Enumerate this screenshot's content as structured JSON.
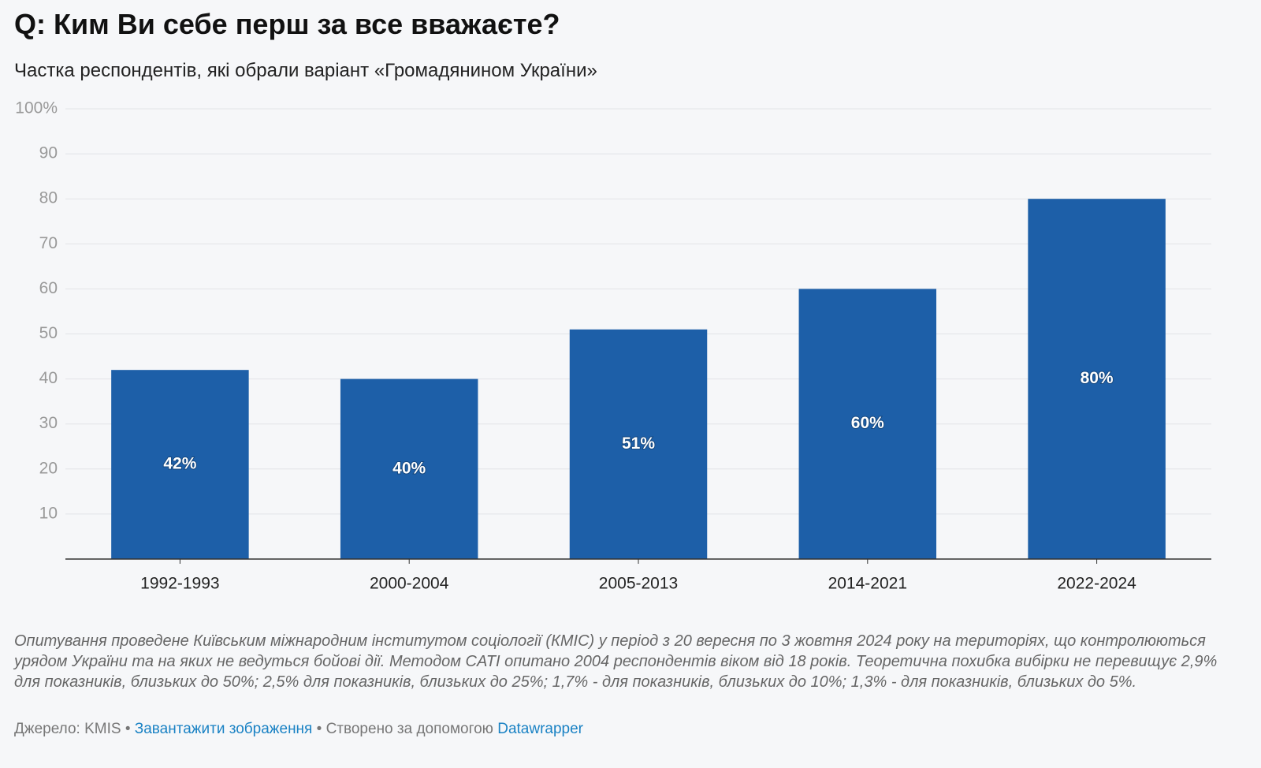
{
  "chart_data": {
    "type": "bar",
    "title": "Q: Ким Ви себе перш за все вважаєте?",
    "subtitle": "Частка респондентів, які обрали варіант «Громадянином України»",
    "categories": [
      "1992-1993",
      "2000-2004",
      "2005-2013",
      "2014-2021",
      "2022-2024"
    ],
    "values": [
      42,
      40,
      51,
      60,
      80
    ],
    "value_labels": [
      "42%",
      "40%",
      "51%",
      "60%",
      "80%"
    ],
    "color": "#1d5fa8",
    "ylim": [
      0,
      100
    ],
    "yticks": [
      10,
      20,
      30,
      40,
      50,
      60,
      70,
      80,
      90,
      {
        "value": 100,
        "label": "100%"
      }
    ],
    "grid": true,
    "note": "Опитування проведене Київським міжнародним інститутом соціології (КМІС) у період з 20 вересня по 3 жовтня 2024 року на територіях, що контролюються урядом України та на яких не ведуться бойові дії. Методом CATI опитано 2004 респондентів віком від 18 років. Теоретична похибка вибірки не перевищує 2,9% для показників, близьких до 50%; 2,5% для показників, близьких до 25%; 1,7% - для показників, близьких до 10%; 1,3% - для показників, близьких до 5%.",
    "source": "Джерело: KMIS",
    "separator": "•",
    "download_link": "Завантажити зображення",
    "credit": "Створено за допомогою",
    "credit_link": "Datawrapper"
  }
}
